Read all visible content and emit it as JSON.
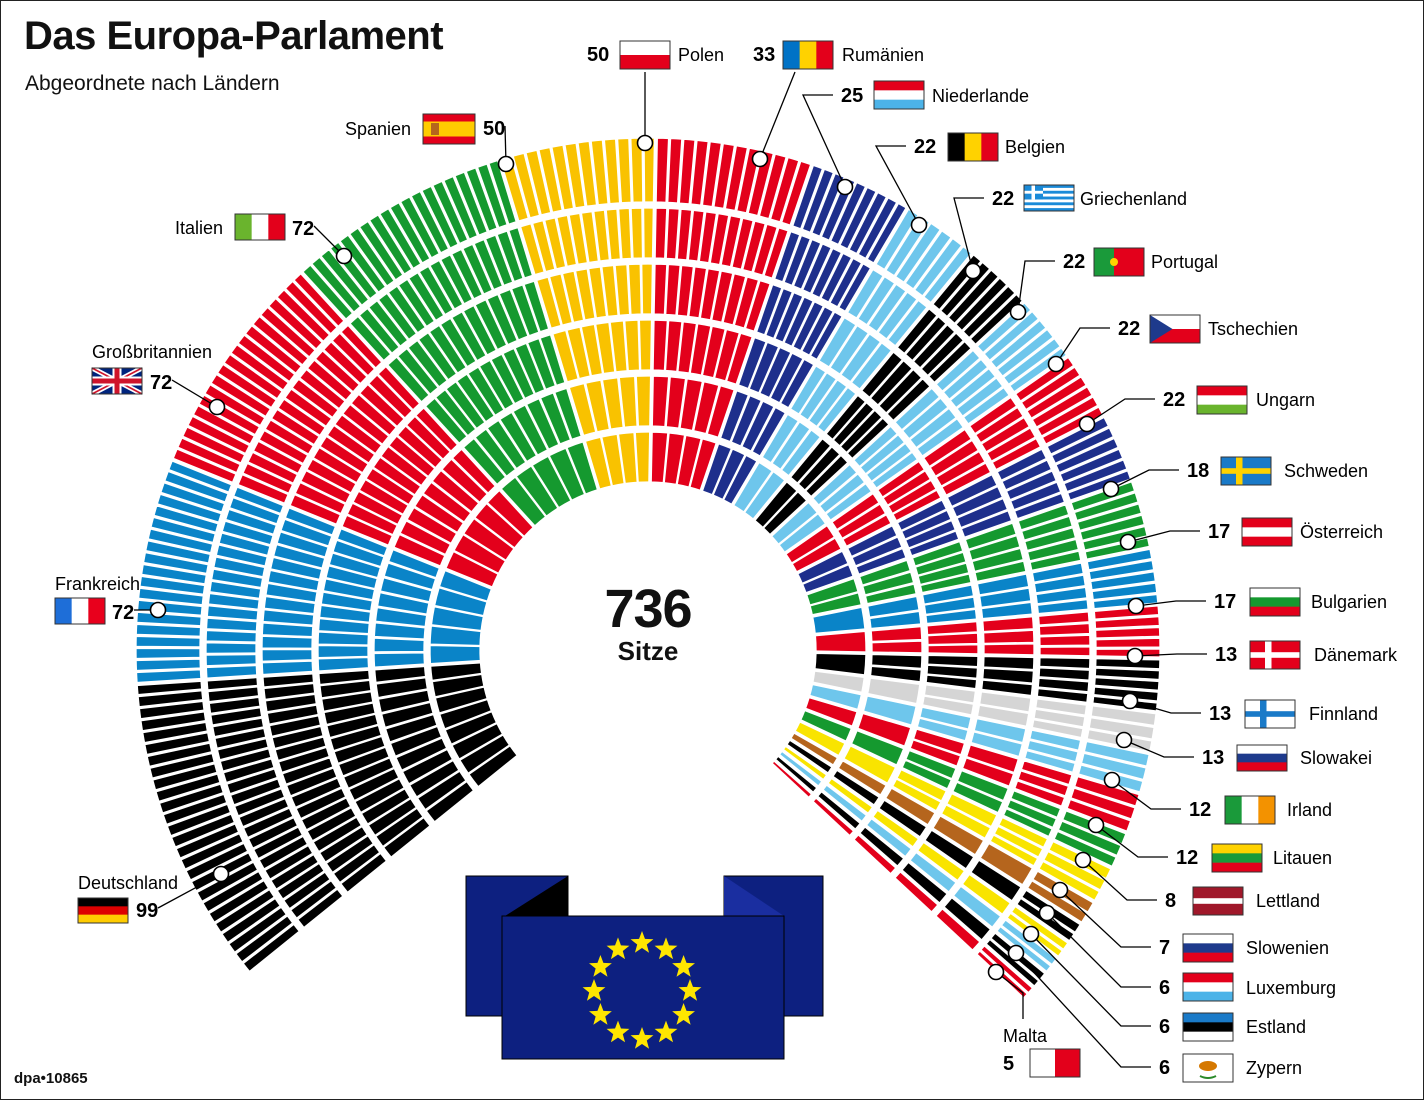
{
  "title": "Das Europa-Parlament",
  "subtitle": "Abgeordnete nach Ländern",
  "credit": "dpa•10865",
  "total": {
    "value": "736",
    "label": "Sitze"
  },
  "chart_data": {
    "type": "parliament-hemicycle",
    "total_seats": 736,
    "countries": [
      {
        "name": "Deutschland",
        "seats": 99,
        "color": "#000000",
        "flag": [
          "#000000",
          "#dd0000",
          "#ffcc00"
        ],
        "flag_dir": "h"
      },
      {
        "name": "Frankreich",
        "seats": 72,
        "color": "#0a84c8",
        "flag": [
          "#1e6ed8",
          "#ffffff",
          "#e8001c"
        ],
        "flag_dir": "v"
      },
      {
        "name": "Großbritannien",
        "seats": 72,
        "color": "#e3001b",
        "flag": [
          "#00247d"
        ],
        "flag_dir": "uk"
      },
      {
        "name": "Italien",
        "seats": 72,
        "color": "#15992f",
        "flag": [
          "#6ab42d",
          "#ffffff",
          "#e3001b"
        ],
        "flag_dir": "v"
      },
      {
        "name": "Spanien",
        "seats": 50,
        "color": "#f9c200",
        "flag": [
          "#e3001b",
          "#ffcc00",
          "#e3001b"
        ],
        "flag_dir": "es"
      },
      {
        "name": "Polen",
        "seats": 50,
        "color": "#e3001b",
        "flag": [
          "#ffffff",
          "#e3001b"
        ],
        "flag_dir": "h"
      },
      {
        "name": "Rumänien",
        "seats": 33,
        "color": "#1e2f8c",
        "flag": [
          "#0072c6",
          "#ffd200",
          "#e3001b"
        ],
        "flag_dir": "v"
      },
      {
        "name": "Niederlande",
        "seats": 25,
        "color": "#6ec6ec",
        "flag": [
          "#e3001b",
          "#ffffff",
          "#4cb3e8"
        ],
        "flag_dir": "h"
      },
      {
        "name": "Belgien",
        "seats": 22,
        "color": "#000000",
        "flag": [
          "#000000",
          "#ffd200",
          "#e3001b"
        ],
        "flag_dir": "v"
      },
      {
        "name": "Griechenland",
        "seats": 22,
        "color": "#6ec6ec",
        "flag": [
          "#1a8ad8",
          "#ffffff"
        ],
        "flag_dir": "gr"
      },
      {
        "name": "Portugal",
        "seats": 22,
        "color": "#e3001b",
        "flag": [
          "#1a9a3a",
          "#e3001b"
        ],
        "flag_dir": "pt"
      },
      {
        "name": "Tschechien",
        "seats": 22,
        "color": "#1e2f8c",
        "flag": [
          "#ffffff",
          "#e3001b",
          "#1e3a8c"
        ],
        "flag_dir": "cz"
      },
      {
        "name": "Ungarn",
        "seats": 22,
        "color": "#15992f",
        "flag": [
          "#e3001b",
          "#ffffff",
          "#6ab42d"
        ],
        "flag_dir": "h"
      },
      {
        "name": "Schweden",
        "seats": 18,
        "color": "#0a84c8",
        "flag": [
          "#1a7ac8",
          "#ffd200"
        ],
        "flag_dir": "nordic"
      },
      {
        "name": "Österreich",
        "seats": 17,
        "color": "#e3001b",
        "flag": [
          "#e3001b",
          "#ffffff",
          "#e3001b"
        ],
        "flag_dir": "h"
      },
      {
        "name": "Bulgarien",
        "seats": 17,
        "color": "#000000",
        "flag": [
          "#ffffff",
          "#15992f",
          "#e3001b"
        ],
        "flag_dir": "h"
      },
      {
        "name": "Dänemark",
        "seats": 13,
        "color": "#d5d5d5",
        "flag": [
          "#e3001b",
          "#ffffff"
        ],
        "flag_dir": "nordic"
      },
      {
        "name": "Finnland",
        "seats": 13,
        "color": "#6ec6ec",
        "flag": [
          "#ffffff",
          "#1a7ac8"
        ],
        "flag_dir": "nordic"
      },
      {
        "name": "Slowakei",
        "seats": 13,
        "color": "#e3001b",
        "flag": [
          "#ffffff",
          "#1e3a8c",
          "#e3001b"
        ],
        "flag_dir": "h"
      },
      {
        "name": "Irland",
        "seats": 12,
        "color": "#15992f",
        "flag": [
          "#1a9a3a",
          "#ffffff",
          "#f39200"
        ],
        "flag_dir": "v"
      },
      {
        "name": "Litauen",
        "seats": 12,
        "color": "#f9e400",
        "flag": [
          "#ffd200",
          "#1a9a3a",
          "#e3001b"
        ],
        "flag_dir": "h"
      },
      {
        "name": "Lettland",
        "seats": 8,
        "color": "#b5651d",
        "flag": [
          "#a0182a",
          "#ffffff",
          "#a0182a"
        ],
        "flag_dir": "lv"
      },
      {
        "name": "Slowenien",
        "seats": 7,
        "color": "#000000",
        "flag": [
          "#ffffff",
          "#1e3a8c",
          "#e3001b"
        ],
        "flag_dir": "h"
      },
      {
        "name": "Luxemburg",
        "seats": 6,
        "color": "#f9e400",
        "flag": [
          "#e3001b",
          "#ffffff",
          "#4cb3e8"
        ],
        "flag_dir": "h"
      },
      {
        "name": "Estland",
        "seats": 6,
        "color": "#6ec6ec",
        "flag": [
          "#1a7ac8",
          "#000000",
          "#ffffff"
        ],
        "flag_dir": "h"
      },
      {
        "name": "Zypern",
        "seats": 6,
        "color": "#000000",
        "flag": [
          "#ffffff"
        ],
        "flag_dir": "cy"
      },
      {
        "name": "Malta",
        "seats": 5,
        "color": "#e3001b",
        "flag": [
          "#ffffff",
          "#e3001b"
        ],
        "flag_dir": "v2"
      }
    ]
  }
}
